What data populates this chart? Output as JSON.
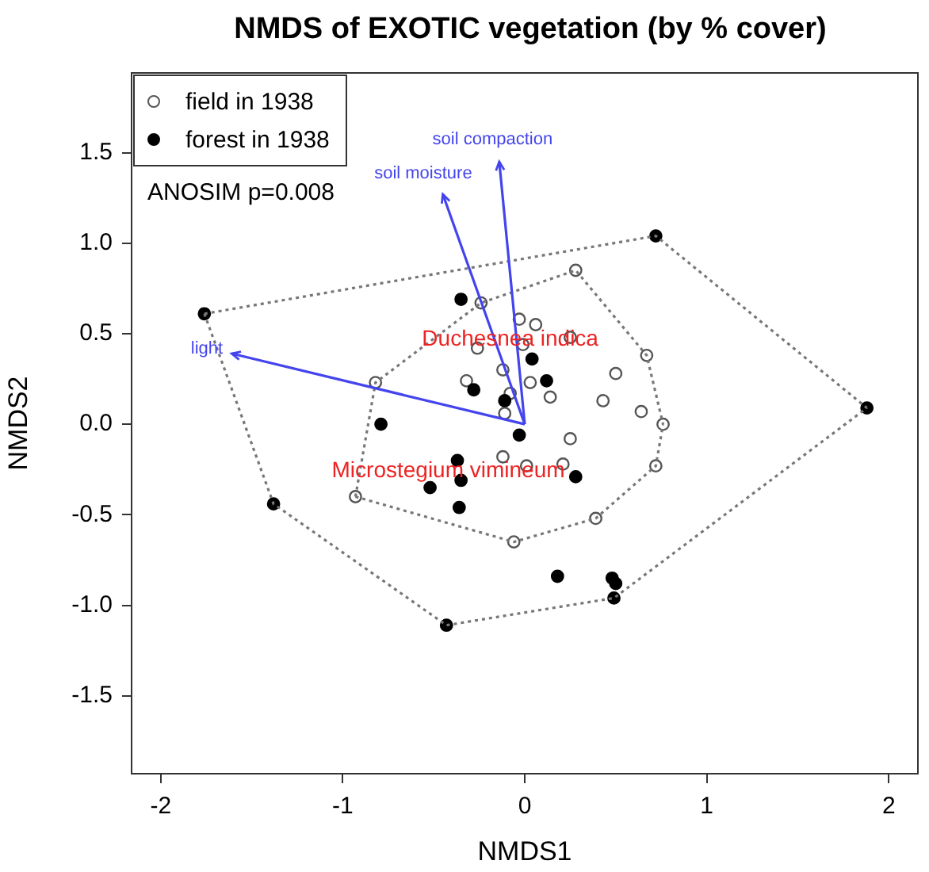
{
  "chart_data": {
    "type": "scatter",
    "title": "NMDS of EXOTIC vegetation (by % cover)",
    "xlabel": "NMDS1",
    "ylabel": "NMDS2",
    "xlim": [
      -2.16,
      2.16
    ],
    "ylim": [
      -1.93,
      1.94
    ],
    "xticks": [
      -2,
      -1,
      0,
      1,
      2
    ],
    "yticks": [
      {
        "value": -1.5,
        "label": "-1.5"
      },
      {
        "value": -1,
        "label": "-1.0"
      },
      {
        "value": -0.5,
        "label": "-0.5"
      },
      {
        "value": 0,
        "label": "0.0"
      },
      {
        "value": 0.5,
        "label": "0.5"
      },
      {
        "value": 1,
        "label": "1.0"
      },
      {
        "value": 1.5,
        "label": "1.5"
      }
    ],
    "grid": false,
    "legend": "top left",
    "marker": "circle",
    "annotations": [
      "ANOSIM p=0.008",
      {
        "text": "Duchesnea indica",
        "x": -0.08,
        "y": 0.47
      },
      {
        "text": "Microstegium vimineum",
        "x": -0.42,
        "y": -0.26
      }
    ],
    "series": [
      {
        "name": "field in 1938",
        "color": "#555555",
        "x": [
          0.28,
          -0.24,
          -0.03,
          0.06,
          -0.26,
          -0.01,
          0.25,
          0.67,
          0.5,
          -0.82,
          -0.32,
          -0.12,
          0.03,
          0.14,
          -0.08,
          -0.11,
          0.43,
          0.64,
          0.76,
          0.25,
          -0.12,
          0.01,
          0.21,
          0.72,
          -0.93,
          0.39,
          -0.06
        ],
        "values": [
          0.85,
          0.67,
          0.58,
          0.55,
          0.42,
          0.44,
          0.48,
          0.38,
          0.28,
          0.23,
          0.24,
          0.3,
          0.23,
          0.15,
          0.17,
          0.06,
          0.13,
          0.07,
          0.0,
          -0.08,
          -0.18,
          -0.23,
          -0.22,
          -0.23,
          -0.4,
          -0.52,
          -0.65
        ]
      },
      {
        "name": "forest in 1938",
        "color": "#000000",
        "x": [
          0.72,
          -1.76,
          -0.35,
          0.04,
          0.12,
          -0.28,
          -0.11,
          -0.79,
          -0.03,
          1.88,
          -0.37,
          -0.35,
          -0.52,
          -0.36,
          0.28,
          -1.38,
          0.18,
          0.48,
          0.5,
          0.49,
          -0.43
        ],
        "values": [
          1.04,
          0.61,
          0.69,
          0.36,
          0.24,
          0.19,
          0.13,
          0.0,
          -0.06,
          0.09,
          -0.2,
          -0.31,
          -0.35,
          -0.46,
          -0.29,
          -0.44,
          -0.84,
          -0.85,
          -0.88,
          -0.96,
          -1.11
        ]
      },
      {
        "type": "line",
        "color": "#777777",
        "line_style": "dotted",
        "marker": "none",
        "x": [
          -0.93,
          -0.82,
          -0.24,
          0.28,
          0.67,
          0.76
        ],
        "values": [
          -0.4,
          0.23,
          0.67,
          0.85,
          0.38,
          0.0
        ]
      },
      {
        "type": "line",
        "color": "#777777",
        "line_style": "dotted",
        "marker": "none",
        "x": [
          -0.93,
          -0.06,
          0.39,
          0.72,
          0.76
        ],
        "values": [
          -0.4,
          -0.65,
          -0.52,
          -0.23,
          0.0
        ]
      },
      {
        "type": "line",
        "color": "#777777",
        "line_style": "dotted",
        "marker": "none",
        "x": [
          -1.76,
          0.72,
          1.88
        ],
        "values": [
          0.61,
          1.04,
          0.09
        ]
      },
      {
        "type": "line",
        "color": "#777777",
        "line_style": "dotted",
        "marker": "none",
        "x": [
          -1.76,
          -1.38,
          -0.43,
          0.49,
          1.88
        ],
        "values": [
          0.61,
          -0.44,
          -1.11,
          -0.96,
          0.09
        ]
      },
      {
        "type": "line",
        "color": "#4444ee",
        "line_style": "solid",
        "marker": "none",
        "x": [
          0,
          -1.61
        ],
        "values": [
          0,
          0.39
        ],
        "value_labels": [
          null,
          "light"
        ]
      },
      {
        "type": "line",
        "color": "#4444ee",
        "line_style": "solid",
        "marker": "none",
        "x": [
          0,
          -0.45
        ],
        "values": [
          0,
          1.27
        ],
        "value_labels": [
          null,
          "soil moisture"
        ]
      },
      {
        "type": "line",
        "color": "#4444ee",
        "line_style": "solid",
        "marker": "none",
        "x": [
          0,
          -0.14
        ],
        "values": [
          0,
          1.45
        ],
        "value_labels": [
          null,
          "soil compaction"
        ]
      }
    ]
  }
}
